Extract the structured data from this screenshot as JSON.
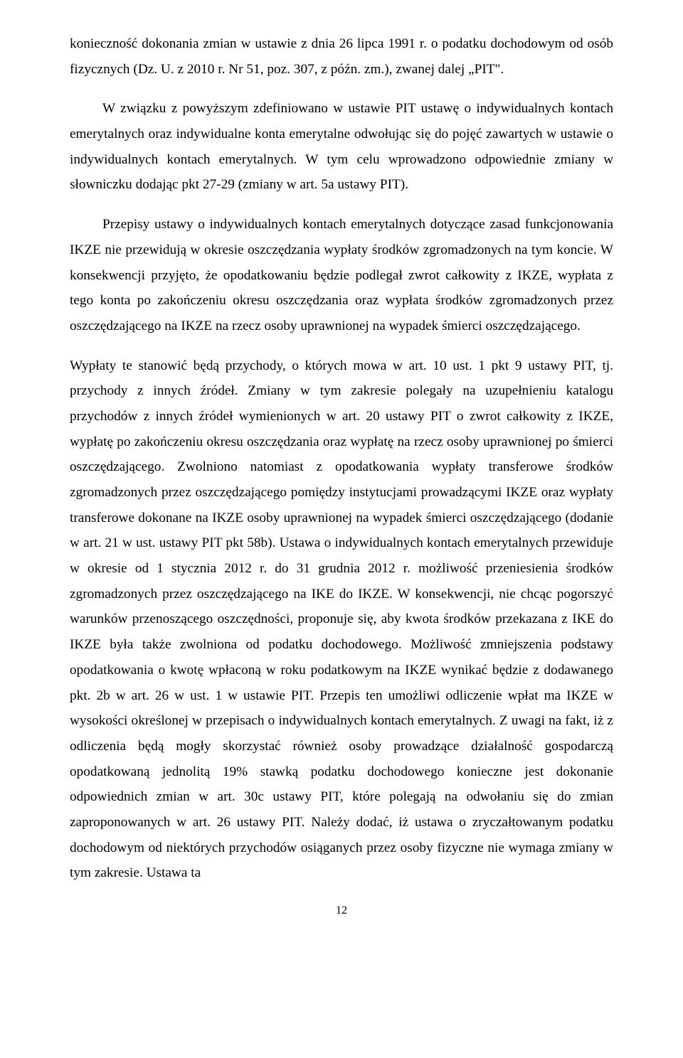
{
  "document": {
    "p1": "konieczność dokonania zmian w ustawie z dnia 26 lipca 1991 r. o podatku dochodowym od osób fizycznych (Dz. U. z 2010 r. Nr 51, poz. 307, z późn. zm.), zwanej dalej „PIT\".",
    "p2": "W związku z powyższym zdefiniowano w ustawie PIT ustawę o indywidualnych kontach emerytalnych oraz indywidualne konta emerytalne odwołując się do pojęć zawartych w ustawie o indywidualnych kontach emerytalnych. W tym celu wprowadzono odpowiednie zmiany w słowniczku dodając pkt 27-29 (zmiany w art. 5a ustawy PIT).",
    "p3": "Przepisy ustawy o indywidualnych kontach emerytalnych dotyczące zasad funkcjonowania IKZE nie przewidują w okresie oszczędzania wypłaty środków zgromadzonych na tym koncie. W konsekwencji przyjęto, że opodatkowaniu będzie podlegał zwrot całkowity z IKZE, wypłata z tego konta po zakończeniu okresu oszczędzania oraz wypłata środków zgromadzonych przez oszczędzającego na IKZE na rzecz osoby uprawnionej na wypadek śmierci oszczędzającego.",
    "p4": "Wypłaty te stanowić będą przychody, o których mowa w art. 10 ust. 1 pkt 9 ustawy PIT, tj. przychody z innych źródeł. Zmiany w tym zakresie polegały na uzupełnieniu katalogu przychodów z innych źródeł wymienionych w art. 20 ustawy PIT o zwrot całkowity z IKZE, wypłatę po zakończeniu okresu oszczędzania oraz wypłatę na rzecz osoby uprawnionej po śmierci oszczędzającego. Zwolniono natomiast z opodatkowania wypłaty transferowe środków zgromadzonych przez oszczędzającego pomiędzy instytucjami prowadzącymi IKZE oraz wypłaty transferowe dokonane na IKZE osoby uprawnionej na wypadek śmierci oszczędzającego (dodanie w art. 21 w ust. ustawy PIT pkt 58b). Ustawa o indywidualnych kontach emerytalnych przewiduje w okresie od 1 stycznia 2012 r. do 31 grudnia 2012 r. możliwość przeniesienia środków zgromadzonych przez oszczędzającego na IKE do IKZE. W konsekwencji, nie chcąc pogorszyć warunków przenoszącego oszczędności, proponuje się, aby kwota środków przekazana z IKE do IKZE była także zwolniona od podatku dochodowego. Możliwość zmniejszenia podstawy opodatkowania o kwotę wpłaconą w roku podatkowym na IKZE wynikać będzie z dodawanego pkt. 2b w art. 26 w ust. 1 w ustawie PIT. Przepis ten  umożliwi odliczenie wpłat ma IKZE w wysokości określonej w przepisach o indywidualnych kontach emerytalnych. Z uwagi na fakt, iż z odliczenia będą mogły skorzystać również osoby prowadzące działalność gospodarczą opodatkowaną jednolitą 19% stawką podatku dochodowego konieczne jest dokonanie odpowiednich zmian w art. 30c ustawy PIT, które polegają na odwołaniu się do zmian zaproponowanych w art. 26 ustawy PIT. Należy dodać, iż ustawa o zryczałtowanym podatku dochodowym od niektórych przychodów osiąganych przez osoby fizyczne nie wymaga zmiany w tym zakresie. Ustawa ta",
    "pageNumber": "12"
  }
}
